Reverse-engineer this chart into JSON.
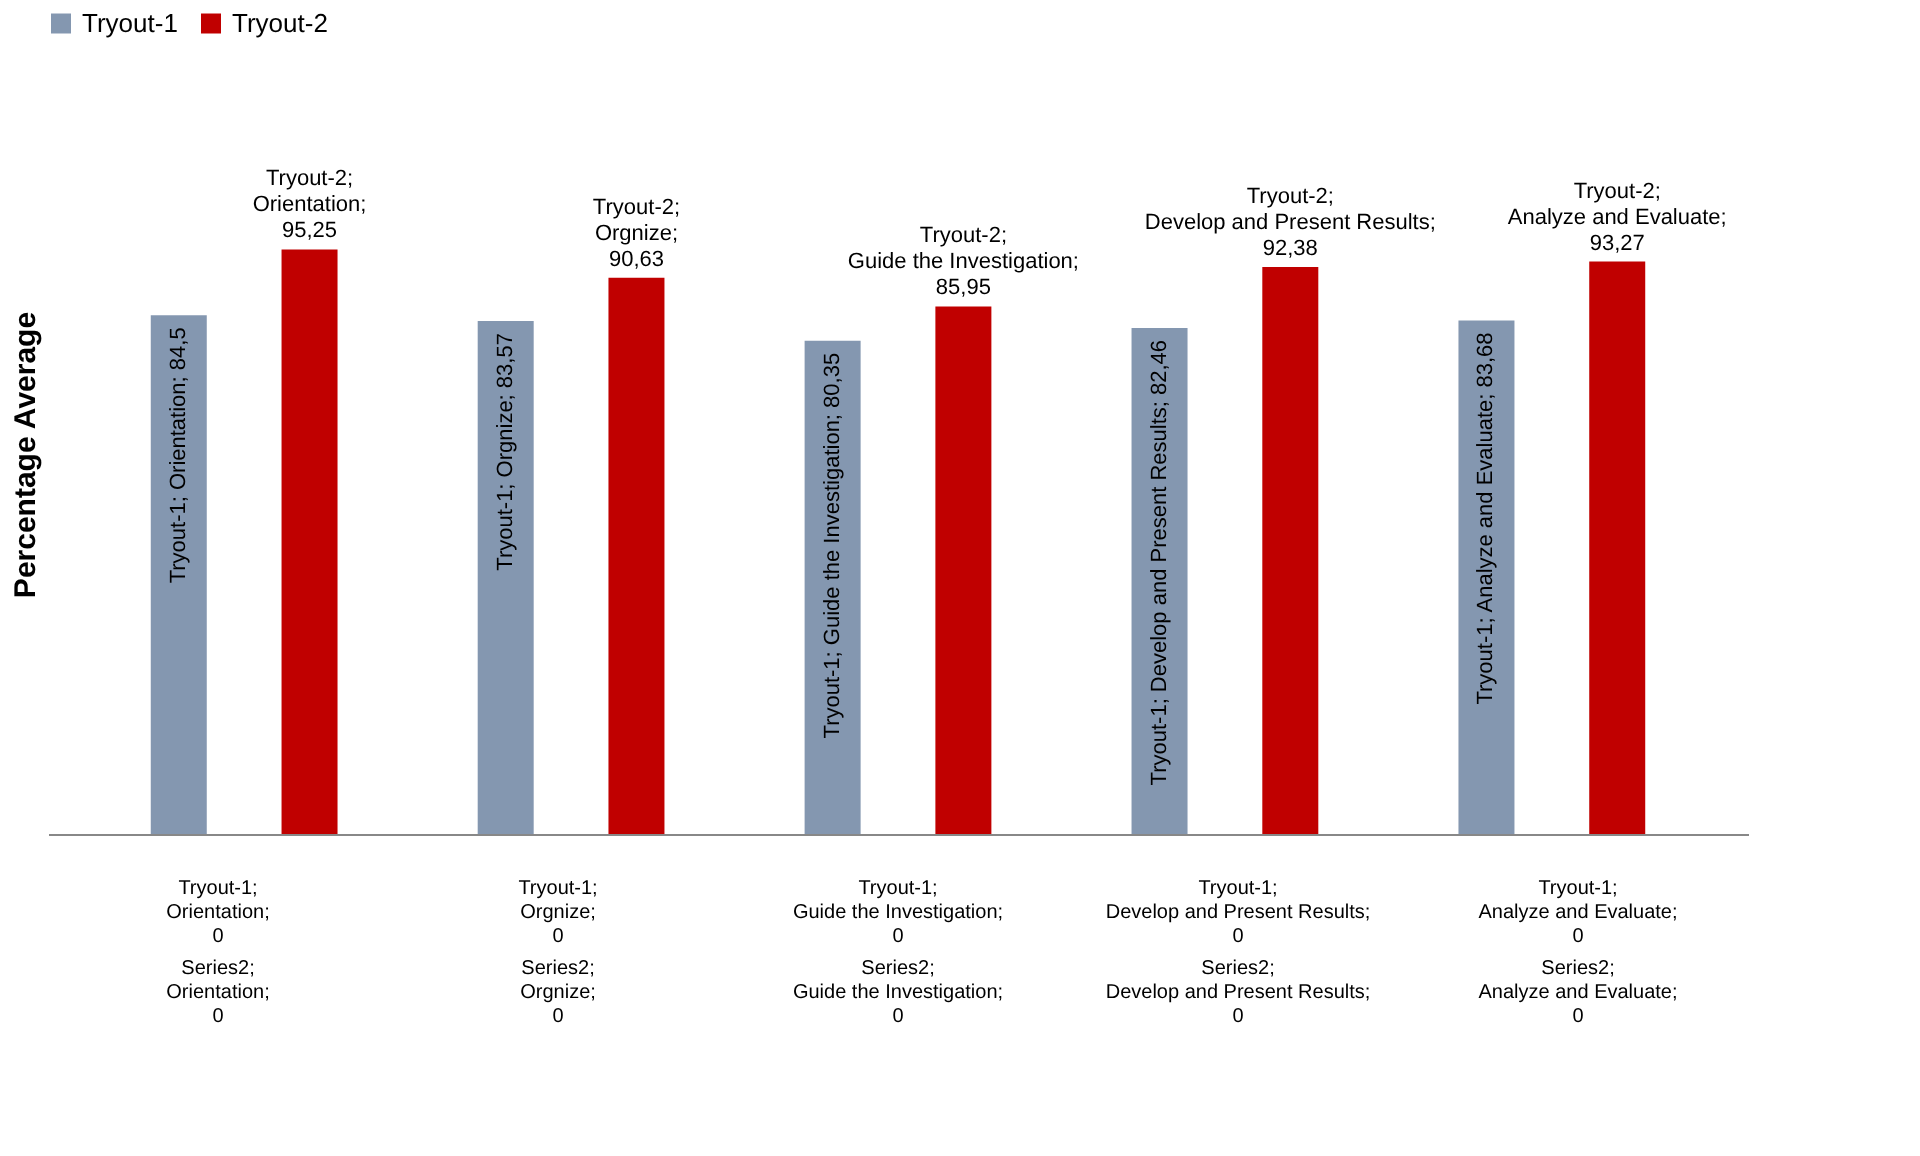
{
  "chart_data": {
    "type": "bar",
    "ylabel": "Percentage Average",
    "categories": [
      null,
      null,
      null,
      null,
      null
    ],
    "series": [
      {
        "name": "Tryout-1",
        "color": "#8497b0",
        "values": [
          84.5,
          83.57,
          80.35,
          82.46,
          83.68
        ],
        "value_labels": [
          "Tryout-1; Orientation; 84,5",
          "Tryout-1; Orgnize; 83,57",
          "Tryout-1; Guide the Investigation; 80,35",
          "Tryout-1; Develop and Present Results; 82,46",
          "Tryout-1; Analyze and Evaluate; 83,68"
        ]
      },
      {
        "name": "Tryout-2",
        "color": "#c00000",
        "values": [
          95.25,
          90.63,
          85.95,
          92.38,
          93.27
        ],
        "value_labels": [
          "Tryout-2; Orientation; 95,25",
          "Tryout-2; Orgnize; 90,63",
          "Tryout-2; Guide the Investigation; 85,95",
          "Tryout-2; Develop and Present Results; 92,38",
          "Tryout-2; Analyze and Evaluate; 93,27"
        ]
      }
    ],
    "annotations": [
      "Tryout-1; Orientation; 0",
      "Tryout-1; Orgnize; 0",
      "Tryout-1; Guide the Investigation; 0",
      "Tryout-1; Develop and Present Results; 0",
      "Tryout-1; Analyze and Evaluate; 0",
      "Series2; Orientation; 0",
      "Series2; Orgnize; 0",
      "Series2; Guide the Investigation; 0",
      "Series2; Develop and Present Results; 0",
      "Series2; Analyze and Evaluate; 0"
    ],
    "tick_labels": false,
    "grid": false,
    "legend": "top"
  }
}
